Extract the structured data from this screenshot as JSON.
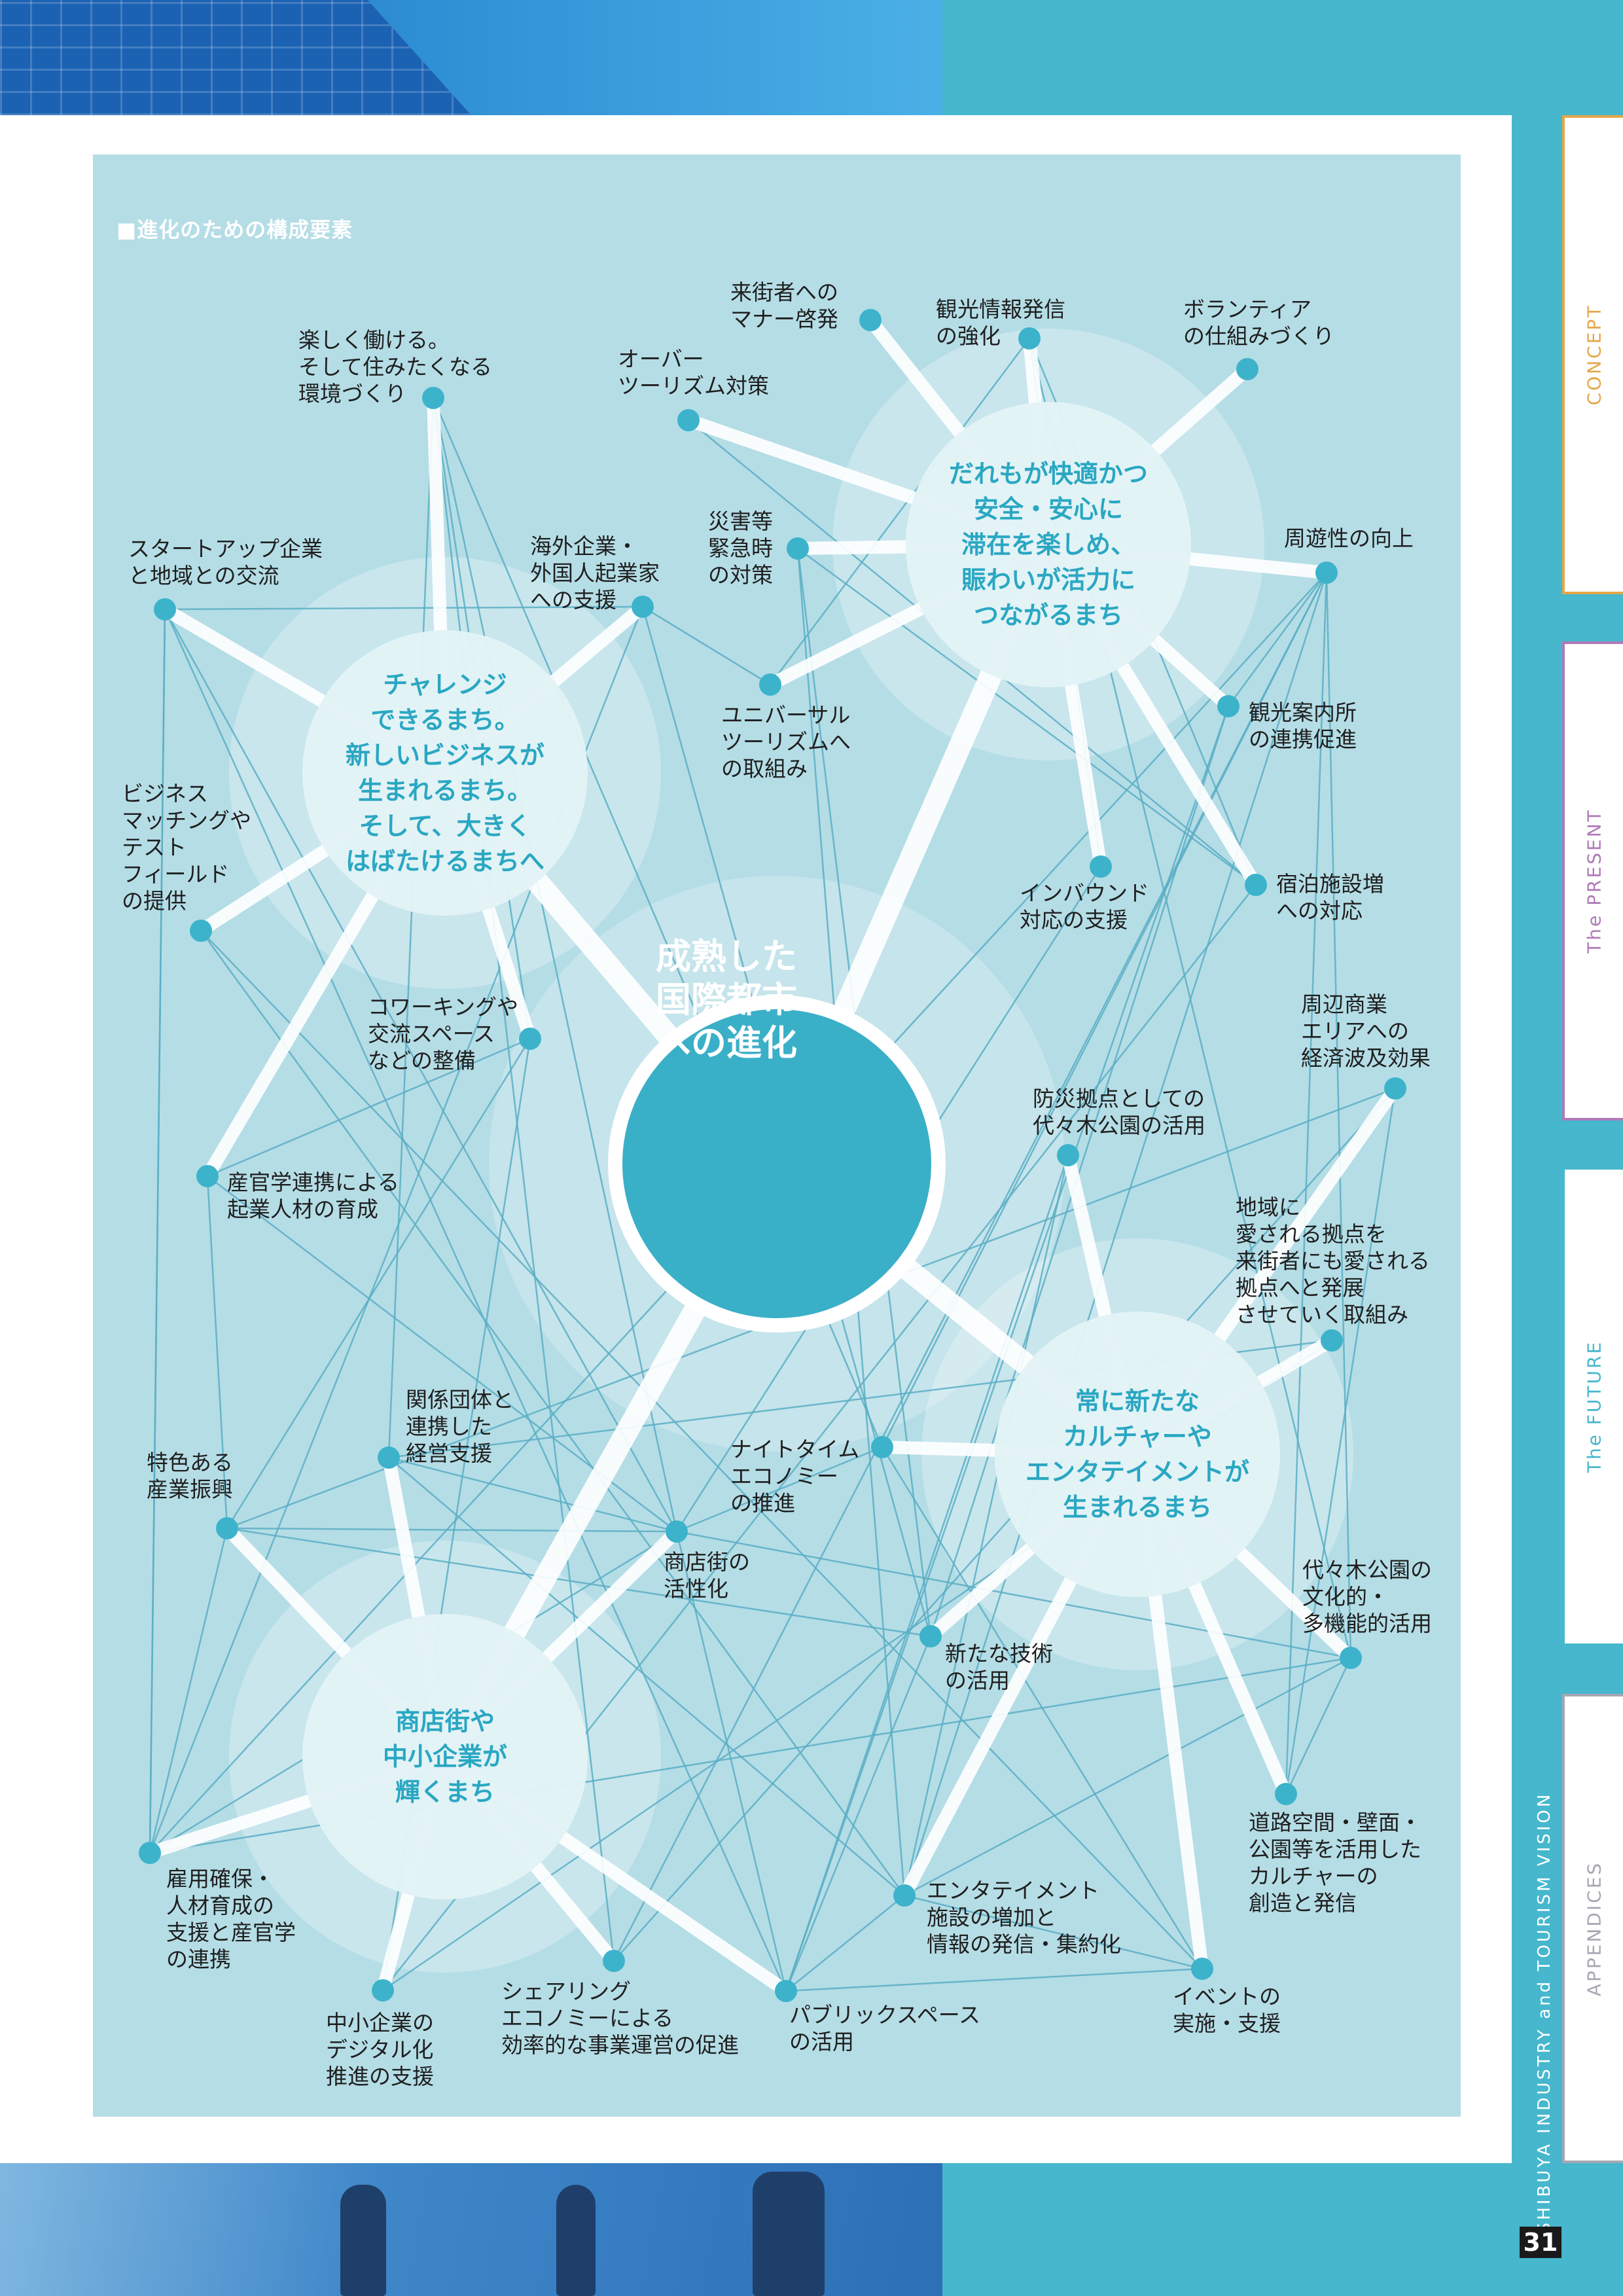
{
  "heading": "■進化のための構成要素",
  "core": {
    "label": "成熟した\n国際都市\nへの進化"
  },
  "hubs": [
    {
      "id": "challenge",
      "label": "チャレンジ\nできるまち。\n新しいビジネスが\n生まれるまち。\nそして、大きく\nはばたけるまちへ"
    },
    {
      "id": "comfort",
      "label": "だれもが快適かつ\n安全・安心に\n滞在を楽しめ、\n賑わいが活力に\nつながるまち"
    },
    {
      "id": "culture",
      "label": "常に新たな\nカルチャーや\nエンタテイメントが\n生まれるまち"
    },
    {
      "id": "shotengai",
      "label": "商店街や\n中小企業が\n輝くまち"
    }
  ],
  "nodes": [
    {
      "id": "n1",
      "label": "楽しく働ける。\nそして住みたくなる\n環境づくり"
    },
    {
      "id": "n2",
      "label": "スタートアップ企業\nと地域との交流"
    },
    {
      "id": "n3",
      "label": "海外企業・\n外国人起業家\nへの支援"
    },
    {
      "id": "n4",
      "label": "ビジネス\nマッチングや\nテスト\nフィールド\nの提供"
    },
    {
      "id": "n5",
      "label": "コワーキングや\n交流スペース\nなどの整備"
    },
    {
      "id": "n6",
      "label": "産官学連携による\n起業人材の育成"
    },
    {
      "id": "n7",
      "label": "来街者への\nマナー啓発"
    },
    {
      "id": "n8",
      "label": "観光情報発信\nの強化"
    },
    {
      "id": "n9",
      "label": "ボランティア\nの仕組みづくり"
    },
    {
      "id": "n10",
      "label": "オーバー\nツーリズム対策"
    },
    {
      "id": "n11",
      "label": "災害等\n緊急時\nの対策"
    },
    {
      "id": "n12",
      "label": "周遊性の向上"
    },
    {
      "id": "n13",
      "label": "ユニバーサル\nツーリズムへ\nの取組み"
    },
    {
      "id": "n14",
      "label": "観光案内所\nの連携促進"
    },
    {
      "id": "n15",
      "label": "インバウンド\n対応の支援"
    },
    {
      "id": "n16",
      "label": "宿泊施設増\nへの対応"
    },
    {
      "id": "n17",
      "label": "周辺商業\nエリアへの\n経済波及効果"
    },
    {
      "id": "n18",
      "label": "防災拠点としての\n代々木公園の活用"
    },
    {
      "id": "n19",
      "label": "地域に\n愛される拠点を\n来街者にも愛される\n拠点へと発展\nさせていく取組み"
    },
    {
      "id": "n20",
      "label": "ナイトタイム\nエコノミー\nの推進"
    },
    {
      "id": "n21",
      "label": "代々木公園の\n文化的・\n多機能的活用"
    },
    {
      "id": "n22",
      "label": "新たな技術\nの活用"
    },
    {
      "id": "n23",
      "label": "道路空間・壁面・\n公園等を活用した\nカルチャーの\n創造と発信"
    },
    {
      "id": "n24",
      "label": "エンタテイメント\n施設の増加と\n情報の発信・集約化"
    },
    {
      "id": "n25",
      "label": "イベントの\n実施・支援"
    },
    {
      "id": "n26",
      "label": "関係団体と\n連携した\n経営支援"
    },
    {
      "id": "n27",
      "label": "特色ある\n産業振興"
    },
    {
      "id": "n28",
      "label": "商店街の\n活性化"
    },
    {
      "id": "n29",
      "label": "雇用確保・\n人材育成の\n支援と産官学\nの連携"
    },
    {
      "id": "n30",
      "label": "中小企業の\nデジタル化\n推進の支援"
    },
    {
      "id": "n31",
      "label": "シェアリング\nエコノミーによる\n効率的な事業運営の促進"
    },
    {
      "id": "n32",
      "label": "パブリックスペース\nの活用"
    }
  ],
  "tabs": [
    {
      "label": "CONCEPT",
      "color": "#e4a74a"
    },
    {
      "label": "The PRESENT",
      "color": "#b07ab8"
    },
    {
      "label": "The FUTURE",
      "color": "#46b7cd"
    },
    {
      "label": "APPENDICES",
      "color": "#a7a7b3"
    }
  ],
  "side_title": "SHIBUYA INDUSTRY and TOURISM VISION",
  "page_number": "31",
  "colors": {
    "panel": "#b5dde6",
    "accent": "#3aafc8",
    "node": "#3cb3cb",
    "line": "#5aaec4",
    "hub_text": "#2aa7c2"
  }
}
